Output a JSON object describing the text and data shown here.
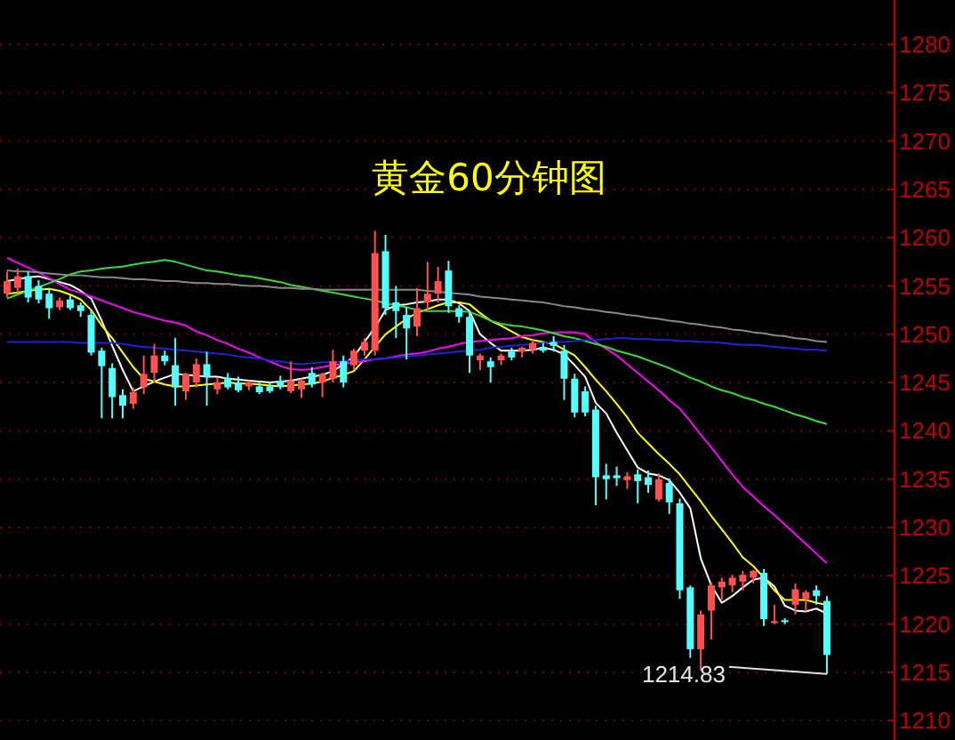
{
  "chart_data": {
    "type": "candlestick",
    "title": "黄金60分钟图",
    "categories": [
      null,
      null,
      null,
      null,
      null,
      null,
      null,
      null,
      null,
      null,
      null,
      null,
      null,
      null,
      null,
      null,
      null,
      null,
      null,
      null,
      null,
      null,
      null,
      null,
      null,
      null,
      null,
      null,
      null,
      null,
      null,
      null,
      null,
      null,
      null,
      null,
      null,
      null,
      null,
      null,
      null,
      null,
      null,
      null,
      null,
      null,
      null,
      null,
      null,
      null,
      null,
      null,
      null,
      null,
      null,
      null,
      null,
      null,
      null,
      null,
      null,
      null,
      null,
      null,
      null,
      null,
      null,
      null,
      null,
      null,
      null,
      null,
      null,
      null,
      null,
      null,
      null,
      null,
      null
    ],
    "ohlc": [
      [
        1254.2,
        1256.5,
        1253.8,
        1255.5
      ],
      [
        1254.8,
        1256.8,
        1254.3,
        1256.0
      ],
      [
        1256.0,
        1256.5,
        1253.3,
        1253.8
      ],
      [
        1255.0,
        1255.6,
        1253.2,
        1253.6
      ],
      [
        1254.2,
        1254.8,
        1251.6,
        1252.7
      ],
      [
        1252.8,
        1253.8,
        1252.5,
        1253.5
      ],
      [
        1253.6,
        1254.0,
        1252.5,
        1252.7
      ],
      [
        1253.0,
        1253.3,
        1251.8,
        1252.4
      ],
      [
        1252.0,
        1252.5,
        1247.8,
        1248.1
      ],
      [
        1248.3,
        1248.6,
        1241.3,
        1246.7
      ],
      [
        1246.5,
        1247.0,
        1241.3,
        1243.5
      ],
      [
        1243.7,
        1244.3,
        1241.3,
        1242.6
      ],
      [
        1242.8,
        1244.5,
        1242.3,
        1244.0
      ],
      [
        1244.5,
        1247.8,
        1243.8,
        1245.9
      ],
      [
        1246.0,
        1249.0,
        1245.0,
        1247.8
      ],
      [
        1247.8,
        1248.3,
        1246.8,
        1247.2
      ],
      [
        1246.8,
        1249.6,
        1242.6,
        1244.5
      ],
      [
        1244.1,
        1246.0,
        1243.2,
        1245.9
      ],
      [
        1245.0,
        1247.5,
        1244.5,
        1246.9
      ],
      [
        1246.9,
        1248.2,
        1242.6,
        1245.6
      ],
      [
        1244.3,
        1245.5,
        1243.8,
        1245.0
      ],
      [
        1245.5,
        1246.0,
        1244.3,
        1244.5
      ],
      [
        1245.0,
        1245.6,
        1244.0,
        1244.2
      ],
      [
        1244.6,
        1245.2,
        1244.2,
        1245.0
      ],
      [
        1244.6,
        1245.0,
        1243.8,
        1244.0
      ],
      [
        1244.6,
        1245.0,
        1243.9,
        1244.1
      ],
      [
        1245.2,
        1245.7,
        1244.3,
        1244.6
      ],
      [
        1244.1,
        1247.2,
        1243.9,
        1245.2
      ],
      [
        1244.3,
        1245.4,
        1243.4,
        1245.2
      ],
      [
        1246.0,
        1246.6,
        1244.5,
        1244.8
      ],
      [
        1245.0,
        1246.0,
        1243.5,
        1245.9
      ],
      [
        1245.4,
        1248.4,
        1245.0,
        1247.2
      ],
      [
        1247.2,
        1247.8,
        1244.5,
        1245.0
      ],
      [
        1246.8,
        1248.5,
        1246.3,
        1248.3
      ],
      [
        1248.3,
        1249.6,
        1247.8,
        1249.2
      ],
      [
        1248.3,
        1260.7,
        1247.8,
        1258.4
      ],
      [
        1258.6,
        1260.3,
        1252.0,
        1252.7
      ],
      [
        1253.3,
        1255.0,
        1249.6,
        1252.4
      ],
      [
        1252.0,
        1252.8,
        1247.4,
        1250.6
      ],
      [
        1250.8,
        1254.8,
        1249.8,
        1252.7
      ],
      [
        1253.3,
        1257.5,
        1252.4,
        1254.2
      ],
      [
        1254.2,
        1257.0,
        1253.3,
        1255.5
      ],
      [
        1256.6,
        1257.6,
        1252.2,
        1252.9
      ],
      [
        1252.7,
        1253.0,
        1251.2,
        1251.8
      ],
      [
        1251.8,
        1252.4,
        1246.0,
        1247.8
      ],
      [
        1247.3,
        1248.0,
        1246.3,
        1247.8
      ],
      [
        1247.2,
        1247.6,
        1245.0,
        1246.6
      ],
      [
        1247.3,
        1248.0,
        1246.8,
        1247.8
      ],
      [
        1248.2,
        1248.6,
        1247.3,
        1247.6
      ],
      [
        1248.2,
        1248.7,
        1247.6,
        1248.6
      ],
      [
        1248.4,
        1249.4,
        1248.0,
        1249.1
      ],
      [
        1248.7,
        1249.1,
        1248.1,
        1248.3
      ],
      [
        1249.2,
        1249.8,
        1248.2,
        1248.8
      ],
      [
        1248.3,
        1248.9,
        1243.2,
        1245.4
      ],
      [
        1245.4,
        1245.9,
        1241.4,
        1241.9
      ],
      [
        1244.1,
        1244.6,
        1241.5,
        1241.9
      ],
      [
        1242.2,
        1242.6,
        1232.3,
        1235.2
      ],
      [
        1235.4,
        1236.6,
        1232.9,
        1235.0
      ],
      [
        1235.4,
        1236.3,
        1234.3,
        1235.1
      ],
      [
        1234.9,
        1235.7,
        1234.0,
        1235.3
      ],
      [
        1235.5,
        1236.0,
        1232.5,
        1234.8
      ],
      [
        1235.2,
        1235.9,
        1233.6,
        1234.4
      ],
      [
        1232.9,
        1235.6,
        1232.7,
        1235.0
      ],
      [
        1234.6,
        1235.1,
        1231.4,
        1232.6
      ],
      [
        1232.5,
        1233.0,
        1222.6,
        1223.5
      ],
      [
        1223.8,
        1224.0,
        1216.5,
        1217.4
      ],
      [
        1217.4,
        1221.4,
        1215.2,
        1221.0
      ],
      [
        1221.4,
        1224.3,
        1218.4,
        1224.0
      ],
      [
        1223.8,
        1224.8,
        1222.5,
        1224.4
      ],
      [
        1224.0,
        1225.1,
        1223.3,
        1224.8
      ],
      [
        1224.4,
        1225.5,
        1223.5,
        1225.1
      ],
      [
        1224.8,
        1225.6,
        1224.2,
        1225.5
      ],
      [
        1225.3,
        1225.7,
        1219.8,
        1220.5
      ],
      [
        1220.1,
        1222.0,
        1220.0,
        1220.3
      ],
      [
        1220.4,
        1220.6,
        1220.0,
        1220.2
      ],
      [
        1222.0,
        1224.2,
        1221.0,
        1223.6
      ],
      [
        1222.6,
        1223.5,
        1221.3,
        1223.3
      ],
      [
        1223.5,
        1224.0,
        1222.0,
        1222.9
      ],
      [
        1222.4,
        1222.9,
        1214.83,
        1216.8
      ]
    ],
    "colors": [
      "#ff5050",
      "#ff5050",
      "#54ffff",
      "#54ffff",
      "#54ffff",
      "#ff5050",
      "#54ffff",
      "#54ffff",
      "#54ffff",
      "#54ffff",
      "#54ffff",
      "#54ffff",
      "#ff5050",
      "#ff5050",
      "#ff5050",
      "#54ffff",
      "#54ffff",
      "#ff5050",
      "#ff5050",
      "#54ffff",
      "#ff5050",
      "#54ffff",
      "#54ffff",
      "#ff5050",
      "#54ffff",
      "#54ffff",
      "#54ffff",
      "#ff5050",
      "#ff5050",
      "#54ffff",
      "#ff5050",
      "#ff5050",
      "#54ffff",
      "#ff5050",
      "#ff5050",
      "#ff5050",
      "#54ffff",
      "#54ffff",
      "#54ffff",
      "#ff5050",
      "#ff5050",
      "#ff5050",
      "#54ffff",
      "#54ffff",
      "#54ffff",
      "#ff5050",
      "#54ffff",
      "#ff5050",
      "#54ffff",
      "#ff5050",
      "#ff5050",
      "#54ffff",
      "#54ffff",
      "#54ffff",
      "#54ffff",
      "#54ffff",
      "#54ffff",
      "#54ffff",
      "#54ffff",
      "#ff5050",
      "#54ffff",
      "#54ffff",
      "#ff5050",
      "#54ffff",
      "#54ffff",
      "#54ffff",
      "#ff5050",
      "#ff5050",
      "#ff5050",
      "#ff5050",
      "#ff5050",
      "#ff5050",
      "#54ffff",
      "#ff5050",
      "#54ffff",
      "#ff5050",
      "#ff5050",
      "#54ffff",
      "#54ffff"
    ],
    "series": [
      {
        "type": "line",
        "color": "#ffffff",
        "values": [
          1255.5,
          1255.7,
          1255.9,
          1256.0,
          1255.7,
          1255.4,
          1255.1,
          1254.5,
          1253.7,
          1251.4,
          1248.8,
          1246.3,
          1244.1,
          1244.6,
          1245.1,
          1245.5,
          1245.9,
          1245.8,
          1245.7,
          1245.6,
          1245.6,
          1245.4,
          1245.3,
          1245.2,
          1245.1,
          1245.0,
          1245.1,
          1245.2,
          1245.4,
          1245.6,
          1245.8,
          1246.2,
          1246.9,
          1247.7,
          1249.2,
          1250.7,
          1252.5,
          1253.0,
          1253.1,
          1253.3,
          1253.4,
          1253.6,
          1253.6,
          1253.2,
          1252.4,
          1250.0,
          1249.1,
          1248.3,
          1248.3,
          1248.3,
          1248.4,
          1248.6,
          1248.4,
          1247.9,
          1246.8,
          1245.6,
          1242.9,
          1241.8,
          1239.8,
          1238.0,
          1236.2,
          1235.6,
          1235.4,
          1234.9,
          1233.6,
          1232.0,
          1226.8,
          1224.0,
          1222.2,
          1222.9,
          1223.8,
          1224.6,
          1224.8,
          1223.9,
          1221.9,
          1221.4,
          1221.3,
          1221.6,
          1221.1
        ]
      },
      {
        "type": "line",
        "color": "#ffff00",
        "values": [
          1254.2,
          1254.3,
          1254.5,
          1254.6,
          1254.7,
          1254.5,
          1254.1,
          1253.6,
          1252.5,
          1250.9,
          1249.6,
          1248.1,
          1246.6,
          1245.4,
          1245.1,
          1244.8,
          1244.6,
          1244.6,
          1244.7,
          1244.8,
          1244.9,
          1245.0,
          1244.9,
          1244.9,
          1244.8,
          1244.7,
          1244.6,
          1244.7,
          1244.8,
          1244.9,
          1245.1,
          1245.5,
          1245.8,
          1246.2,
          1247.4,
          1248.7,
          1250.0,
          1250.8,
          1251.6,
          1252.2,
          1252.6,
          1253.0,
          1253.3,
          1253.3,
          1253.1,
          1252.2,
          1251.4,
          1250.9,
          1250.3,
          1249.7,
          1249.4,
          1249.2,
          1249.0,
          1248.4,
          1247.8,
          1246.6,
          1245.3,
          1244.1,
          1242.8,
          1241.4,
          1239.8,
          1238.7,
          1237.6,
          1236.6,
          1235.5,
          1234.1,
          1232.7,
          1231.2,
          1229.8,
          1228.4,
          1226.9,
          1226.0,
          1224.8,
          1223.5,
          1222.5,
          1222.5,
          1222.5,
          1222.2,
          1222.0
        ]
      },
      {
        "type": "line",
        "color": "#ff00ff",
        "values": [
          1257.9,
          1257.4,
          1256.9,
          1256.4,
          1255.8,
          1255.2,
          1254.6,
          1254.3,
          1253.9,
          1253.5,
          1253.1,
          1252.7,
          1252.3,
          1252.0,
          1251.7,
          1251.4,
          1251.2,
          1250.9,
          1250.3,
          1249.9,
          1249.4,
          1249.0,
          1248.5,
          1248.1,
          1247.6,
          1247.2,
          1246.7,
          1246.4,
          1246.3,
          1246.4,
          1246.6,
          1246.8,
          1246.9,
          1247.1,
          1247.2,
          1247.4,
          1247.5,
          1247.7,
          1247.9,
          1248.0,
          1248.2,
          1248.5,
          1248.7,
          1249.0,
          1249.2,
          1249.3,
          1249.4,
          1249.5,
          1249.6,
          1249.8,
          1249.9,
          1250.1,
          1250.2,
          1250.2,
          1250.2,
          1250.0,
          1249.2,
          1248.5,
          1247.8,
          1246.9,
          1246.0,
          1245.1,
          1244.2,
          1243.2,
          1242.3,
          1241.0,
          1239.6,
          1238.3,
          1236.9,
          1235.5,
          1234.2,
          1233.2,
          1232.2,
          1231.3,
          1230.3,
          1229.3,
          1228.3,
          1227.3,
          1226.3
        ]
      },
      {
        "type": "line",
        "color": "#33dd33",
        "values": [
          1253.7,
          1254.1,
          1254.5,
          1254.9,
          1255.3,
          1255.7,
          1256.2,
          1256.5,
          1256.6,
          1256.8,
          1256.9,
          1257.0,
          1257.2,
          1257.4,
          1257.5,
          1257.7,
          1257.5,
          1257.2,
          1256.9,
          1256.6,
          1256.5,
          1256.3,
          1256.1,
          1256.0,
          1255.8,
          1255.6,
          1255.4,
          1255.1,
          1254.9,
          1254.7,
          1254.5,
          1254.3,
          1254.1,
          1253.9,
          1253.7,
          1253.5,
          1253.2,
          1253.0,
          1252.8,
          1252.5,
          1252.4,
          1252.4,
          1252.4,
          1252.4,
          1252.3,
          1251.9,
          1251.4,
          1251.1,
          1250.9,
          1250.8,
          1250.6,
          1250.4,
          1250.1,
          1249.8,
          1249.6,
          1249.3,
          1249.0,
          1248.7,
          1248.3,
          1248.0,
          1247.7,
          1247.3,
          1246.9,
          1246.5,
          1246.0,
          1245.5,
          1245.1,
          1244.6,
          1244.2,
          1243.9,
          1243.5,
          1243.2,
          1242.8,
          1242.5,
          1242.1,
          1241.7,
          1241.4,
          1241.0,
          1240.7
        ]
      },
      {
        "type": "line",
        "color": "#2020e0",
        "values": [
          1249.2,
          1249.2,
          1249.2,
          1249.2,
          1249.2,
          1249.2,
          1249.2,
          1249.1,
          1249.1,
          1249.1,
          1249.1,
          1249.0,
          1248.8,
          1248.7,
          1248.6,
          1248.5,
          1248.4,
          1248.3,
          1248.2,
          1248.1,
          1248.0,
          1247.9,
          1247.7,
          1247.6,
          1247.5,
          1247.3,
          1247.2,
          1247.0,
          1246.9,
          1247.0,
          1247.1,
          1247.1,
          1247.2,
          1247.3,
          1247.4,
          1247.4,
          1247.5,
          1247.6,
          1247.7,
          1247.8,
          1247.9,
          1248.0,
          1248.1,
          1248.2,
          1248.3,
          1248.4,
          1248.6,
          1248.7,
          1248.8,
          1248.9,
          1249.0,
          1249.1,
          1249.2,
          1249.2,
          1249.3,
          1249.4,
          1249.4,
          1249.5,
          1249.6,
          1249.6,
          1249.5,
          1249.5,
          1249.4,
          1249.4,
          1249.3,
          1249.3,
          1249.2,
          1249.2,
          1249.1,
          1249.0,
          1248.9,
          1248.9,
          1248.8,
          1248.7,
          1248.6,
          1248.5,
          1248.4,
          1248.4,
          1248.3
        ]
      },
      {
        "type": "line",
        "color": "#888888",
        "values": [
          1256.6,
          1256.5,
          1256.5,
          1256.4,
          1256.3,
          1256.2,
          1256.1,
          1256.1,
          1256.0,
          1255.9,
          1255.9,
          1255.8,
          1255.7,
          1255.7,
          1255.6,
          1255.5,
          1255.5,
          1255.4,
          1255.3,
          1255.3,
          1255.2,
          1255.2,
          1255.1,
          1255.0,
          1255.0,
          1254.9,
          1254.8,
          1254.8,
          1254.7,
          1254.7,
          1254.6,
          1254.6,
          1254.6,
          1254.6,
          1254.6,
          1254.6,
          1254.6,
          1254.6,
          1254.6,
          1254.6,
          1254.5,
          1254.4,
          1254.3,
          1254.2,
          1254.1,
          1253.9,
          1253.8,
          1253.7,
          1253.6,
          1253.5,
          1253.4,
          1253.3,
          1253.1,
          1252.9,
          1252.8,
          1252.6,
          1252.5,
          1252.3,
          1252.2,
          1252.0,
          1251.9,
          1251.7,
          1251.6,
          1251.4,
          1251.3,
          1251.1,
          1251.0,
          1250.8,
          1250.7,
          1250.5,
          1250.4,
          1250.2,
          1250.1,
          1249.9,
          1249.8,
          1249.6,
          1249.5,
          1249.3,
          1249.2
        ]
      }
    ],
    "annotations": [
      "1214.83"
    ],
    "ylim": [
      1208,
      1284.6
    ],
    "yticks": [
      1210,
      1215,
      1220,
      1225,
      1230,
      1235,
      1240,
      1245,
      1250,
      1255,
      1260,
      1265,
      1270,
      1275,
      1280
    ],
    "tick_labels": "y",
    "grid": "y"
  }
}
